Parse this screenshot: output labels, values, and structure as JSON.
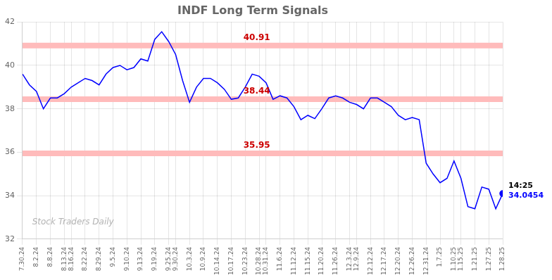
{
  "chart_data": {
    "type": "line",
    "title": "INDF Long Term Signals",
    "watermark": "Stock Traders Daily",
    "color": "blue",
    "grid": true,
    "ylim": [
      32,
      42
    ],
    "yticks": [
      32,
      34,
      36,
      38,
      40,
      42
    ],
    "categories": [
      "7.30.24",
      null,
      "8.2.24",
      null,
      "8.8.24",
      null,
      "8.13.24",
      "8.16.24",
      null,
      "8.22.24",
      null,
      "8.29.24",
      null,
      "9.5.24",
      null,
      "9.10.24",
      null,
      "9.13.24",
      null,
      "9.19.24",
      null,
      "9.25.24",
      "9.30.24",
      null,
      "10.3.24",
      null,
      "10.9.24",
      null,
      "10.14.24",
      null,
      "10.17.24",
      null,
      "10.23.24",
      null,
      "10.28.24",
      "10.31.24",
      null,
      "11.6.24",
      null,
      "11.12.24",
      null,
      "11.15.24",
      null,
      "11.20.24",
      null,
      "11.26.24",
      null,
      "12.3.24",
      "12.9.24",
      null,
      "12.12.24",
      null,
      "12.17.24",
      null,
      "12.20.24",
      null,
      "12.26.24",
      null,
      "12.31.24",
      null,
      "1.7.25",
      null,
      "1.10.25",
      "1.15.25",
      null,
      "1.21.25",
      null,
      "1.27.25",
      null,
      "1.28.25"
    ],
    "values": [
      39.6,
      39.1,
      38.8,
      38.0,
      38.5,
      38.5,
      38.7,
      39.0,
      39.2,
      39.4,
      39.3,
      39.1,
      39.6,
      39.9,
      40.0,
      39.8,
      39.9,
      40.3,
      40.2,
      41.2,
      41.55,
      41.1,
      40.5,
      39.3,
      38.3,
      39.0,
      39.4,
      39.4,
      39.2,
      38.9,
      38.44,
      38.5,
      39.0,
      39.6,
      39.5,
      39.2,
      38.44,
      38.6,
      38.5,
      38.1,
      37.5,
      37.7,
      37.55,
      38.0,
      38.5,
      38.6,
      38.5,
      38.3,
      38.2,
      38.0,
      38.5,
      38.5,
      38.3,
      38.1,
      37.7,
      37.5,
      37.6,
      37.5,
      35.5,
      35.0,
      34.6,
      34.8,
      35.6,
      34.8,
      33.5,
      33.4,
      34.4,
      34.3,
      33.4,
      34.1
    ],
    "levels": [
      {
        "value": 40.91,
        "label": "40.91",
        "color": "#ffbbbb",
        "label_color": "#cc0000"
      },
      {
        "value": 38.44,
        "label": "38.44",
        "color": "#ffbbbb",
        "label_color": "#cc0000"
      },
      {
        "value": 35.95,
        "label": "35.95",
        "color": "#ffbbbb",
        "label_color": "#cc0000"
      }
    ],
    "last_point_labels": [
      {
        "text": "14:25",
        "color": "black"
      },
      {
        "text": "34.0454",
        "color": "blue"
      }
    ]
  }
}
